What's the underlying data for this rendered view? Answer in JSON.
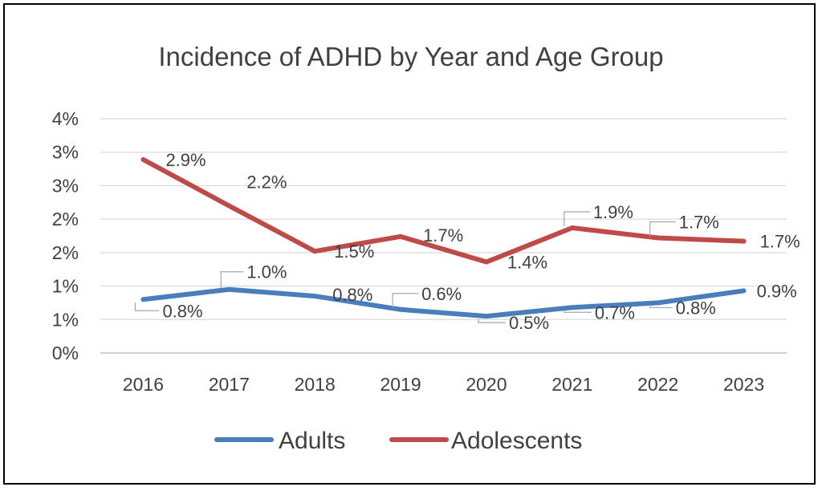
{
  "chart_data": {
    "type": "line",
    "title": "Incidence of ADHD by Year and Age Group",
    "xlabel": "",
    "ylabel": "",
    "categories": [
      "2016",
      "2017",
      "2018",
      "2019",
      "2020",
      "2021",
      "2022",
      "2023"
    ],
    "y_tick_labels": [
      "0%",
      "1%",
      "1%",
      "2%",
      "2%",
      "3%",
      "3%",
      "4%"
    ],
    "ylim": [
      0,
      3.5
    ],
    "grid": true,
    "legend_position": "bottom",
    "series": [
      {
        "name": "Adults",
        "color": "#4A7EBB",
        "values": [
          0.8,
          0.95,
          0.85,
          0.65,
          0.55,
          0.68,
          0.75,
          0.93
        ],
        "labels": [
          "0.8%",
          "1.0%",
          "0.8%",
          "0.6%",
          "0.5%",
          "0.7%",
          "0.8%",
          "0.9%"
        ]
      },
      {
        "name": "Adolescents",
        "color": "#BE4B48",
        "values": [
          2.89,
          2.2,
          1.52,
          1.74,
          1.36,
          1.87,
          1.72,
          1.67
        ],
        "labels": [
          "2.9%",
          "2.2%",
          "1.5%",
          "1.7%",
          "1.4%",
          "1.9%",
          "1.7%",
          "1.7%"
        ]
      }
    ]
  }
}
